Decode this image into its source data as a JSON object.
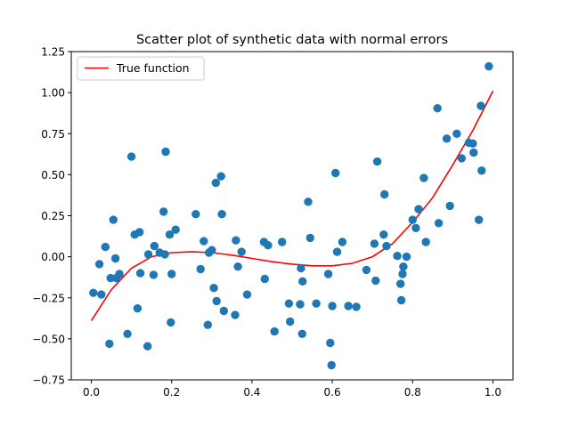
{
  "chart_data": {
    "type": "scatter",
    "title": "Scatter plot of synthetic data with normal errors",
    "xlabel": "",
    "ylabel": "",
    "xlim": [
      -0.05,
      1.05
    ],
    "ylim": [
      -0.75,
      1.25
    ],
    "xticks": [
      0.0,
      0.2,
      0.4,
      0.6,
      0.8,
      1.0
    ],
    "xtick_labels": [
      "0.0",
      "0.2",
      "0.4",
      "0.6",
      "0.8",
      "1.0"
    ],
    "yticks": [
      -0.75,
      -0.5,
      -0.25,
      0.0,
      0.25,
      0.5,
      0.75,
      1.0,
      1.25
    ],
    "ytick_labels": [
      "−0.75",
      "−0.50",
      "−0.25",
      "0.00",
      "0.25",
      "0.50",
      "0.75",
      "1.00",
      "1.25"
    ],
    "grid": false,
    "legend": {
      "placement": "upper-left",
      "entries": [
        "True function"
      ]
    },
    "series": [
      {
        "name": "True function",
        "kind": "line",
        "color": "#ff0000",
        "x": [
          0.0,
          0.05,
          0.1,
          0.15,
          0.2,
          0.25,
          0.3,
          0.35,
          0.4,
          0.45,
          0.5,
          0.55,
          0.6,
          0.65,
          0.7,
          0.75,
          0.8,
          0.85,
          0.9,
          0.95,
          1.0
        ],
        "y": [
          -0.39,
          -0.2,
          -0.07,
          0.0,
          0.025,
          0.03,
          0.025,
          0.01,
          -0.01,
          -0.03,
          -0.045,
          -0.055,
          -0.055,
          -0.04,
          0.0,
          0.08,
          0.21,
          0.36,
          0.56,
          0.77,
          1.01
        ]
      },
      {
        "kind": "scatter",
        "color": "#1f77b4",
        "points": [
          [
            0.005,
            -0.22
          ],
          [
            0.02,
            -0.045
          ],
          [
            0.025,
            -0.23
          ],
          [
            0.035,
            0.06
          ],
          [
            0.045,
            -0.53
          ],
          [
            0.048,
            -0.13
          ],
          [
            0.055,
            0.225
          ],
          [
            0.06,
            -0.01
          ],
          [
            0.062,
            -0.13
          ],
          [
            0.07,
            -0.105
          ],
          [
            0.09,
            -0.47
          ],
          [
            0.1,
            0.61
          ],
          [
            0.108,
            0.135
          ],
          [
            0.115,
            -0.315
          ],
          [
            0.12,
            0.15
          ],
          [
            0.122,
            -0.1
          ],
          [
            0.14,
            -0.545
          ],
          [
            0.142,
            0.015
          ],
          [
            0.155,
            -0.11
          ],
          [
            0.157,
            0.065
          ],
          [
            0.17,
            0.025
          ],
          [
            0.18,
            0.275
          ],
          [
            0.183,
            0.015
          ],
          [
            0.185,
            0.64
          ],
          [
            0.195,
            0.135
          ],
          [
            0.198,
            -0.4
          ],
          [
            0.2,
            -0.105
          ],
          [
            0.21,
            0.165
          ],
          [
            0.26,
            0.26
          ],
          [
            0.272,
            -0.075
          ],
          [
            0.28,
            0.095
          ],
          [
            0.29,
            -0.415
          ],
          [
            0.293,
            0.025
          ],
          [
            0.3,
            0.04
          ],
          [
            0.305,
            -0.19
          ],
          [
            0.31,
            0.45
          ],
          [
            0.312,
            -0.27
          ],
          [
            0.323,
            0.49
          ],
          [
            0.325,
            0.26
          ],
          [
            0.33,
            -0.33
          ],
          [
            0.358,
            -0.355
          ],
          [
            0.36,
            0.1
          ],
          [
            0.365,
            -0.06
          ],
          [
            0.374,
            0.03
          ],
          [
            0.388,
            -0.23
          ],
          [
            0.43,
            0.09
          ],
          [
            0.432,
            -0.135
          ],
          [
            0.44,
            0.07
          ],
          [
            0.456,
            -0.455
          ],
          [
            0.475,
            0.09
          ],
          [
            0.492,
            -0.285
          ],
          [
            0.495,
            -0.395
          ],
          [
            0.52,
            -0.29
          ],
          [
            0.522,
            -0.07
          ],
          [
            0.525,
            -0.47
          ],
          [
            0.526,
            -0.15
          ],
          [
            0.54,
            0.335
          ],
          [
            0.545,
            0.115
          ],
          [
            0.56,
            -0.285
          ],
          [
            0.59,
            -0.105
          ],
          [
            0.595,
            -0.525
          ],
          [
            0.598,
            -0.66
          ],
          [
            0.6,
            -0.3
          ],
          [
            0.608,
            0.51
          ],
          [
            0.612,
            0.03
          ],
          [
            0.625,
            0.09
          ],
          [
            0.64,
            -0.3
          ],
          [
            0.66,
            -0.305
          ],
          [
            0.685,
            -0.08
          ],
          [
            0.705,
            0.08
          ],
          [
            0.708,
            -0.145
          ],
          [
            0.712,
            0.58
          ],
          [
            0.728,
            0.135
          ],
          [
            0.73,
            0.38
          ],
          [
            0.735,
            0.065
          ],
          [
            0.762,
            0.005
          ],
          [
            0.77,
            -0.165
          ],
          [
            0.772,
            -0.265
          ],
          [
            0.775,
            -0.105
          ],
          [
            0.777,
            -0.06
          ],
          [
            0.785,
            0.0
          ],
          [
            0.8,
            0.225
          ],
          [
            0.808,
            0.175
          ],
          [
            0.815,
            0.29
          ],
          [
            0.828,
            0.48
          ],
          [
            0.833,
            0.09
          ],
          [
            0.862,
            0.905
          ],
          [
            0.865,
            0.205
          ],
          [
            0.885,
            0.72
          ],
          [
            0.893,
            0.31
          ],
          [
            0.91,
            0.75
          ],
          [
            0.922,
            0.6
          ],
          [
            0.94,
            0.695
          ],
          [
            0.95,
            0.69
          ],
          [
            0.952,
            0.635
          ],
          [
            0.965,
            0.225
          ],
          [
            0.97,
            0.92
          ],
          [
            0.972,
            0.525
          ],
          [
            0.99,
            1.16
          ]
        ]
      }
    ]
  }
}
